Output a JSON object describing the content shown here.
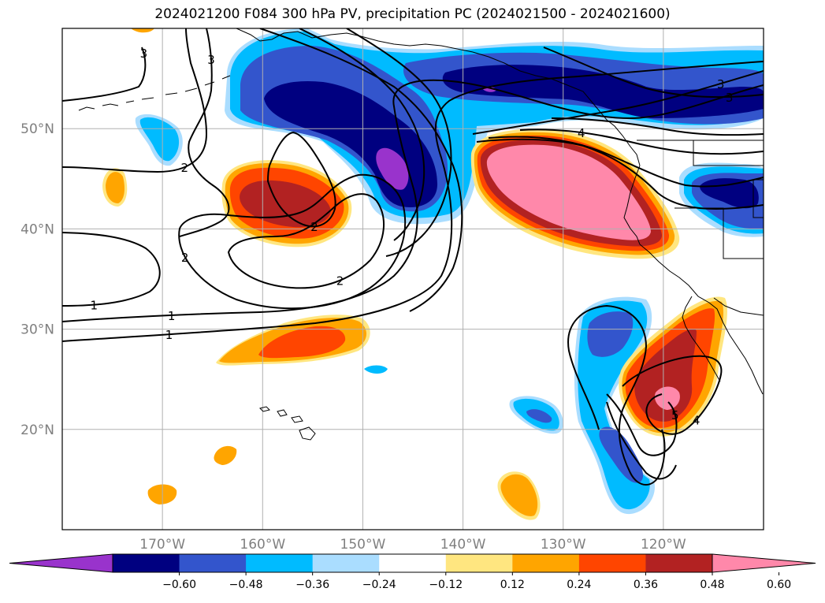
{
  "title": "2024021200 F084 300 hPa PV, precipitation PC (2024021500 - 2024021600)",
  "chart_data": {
    "type": "map-contour",
    "projection": "PlateCarree",
    "lon_range": [
      -180,
      -110
    ],
    "lat_range": [
      10,
      60
    ],
    "grid": true,
    "lat_ticks": [
      "20°N",
      "30°N",
      "40°N",
      "50°N"
    ],
    "lon_ticks": [
      "170°W",
      "160°W",
      "150°W",
      "140°W",
      "130°W",
      "120°W"
    ],
    "filled_variable": "precipitation PC",
    "contour_variable": "300 hPa PV",
    "contour_labels": [
      "1",
      "1",
      "1",
      "2",
      "2",
      "2",
      "2",
      "3",
      "3",
      "3",
      "3",
      "4",
      "4",
      "5"
    ],
    "colorbar": {
      "extend": "both",
      "levels": [
        -0.72,
        -0.6,
        -0.48,
        -0.36,
        -0.24,
        -0.12,
        0.12,
        0.24,
        0.36,
        0.48,
        0.6,
        0.72
      ],
      "tick_labels": [
        "−0.60",
        "−0.48",
        "−0.36",
        "−0.24",
        "−0.12",
        "0.12",
        "0.24",
        "0.36",
        "0.48",
        "0.60"
      ],
      "colors": [
        "#9933cc",
        "#000080",
        "#3355cc",
        "#00bbff",
        "#aaddff",
        "#ffffff",
        "#ffe680",
        "#ffa500",
        "#ff4500",
        "#b22222",
        "#ff88aa"
      ]
    },
    "features": [
      {
        "name": "Gulf of Alaska negative anomaly",
        "center": [
          -148,
          53
        ],
        "value": -0.6
      },
      {
        "name": "NE Pacific negative band",
        "center": [
          -128,
          56
        ],
        "value": -0.48
      },
      {
        "name": "Pacific Northwest interior negative",
        "center": [
          -114,
          44
        ],
        "value": -0.48
      },
      {
        "name": "Central Pacific positive",
        "center": [
          -157,
          42
        ],
        "value": 0.48
      },
      {
        "name": "California offshore positive",
        "center": [
          -128,
          43
        ],
        "value": 0.6
      },
      {
        "name": "Baja positive",
        "center": [
          -121,
          24
        ],
        "value": 0.6
      },
      {
        "name": "Subtropical positive band",
        "center": [
          -155,
          28.5
        ],
        "value": 0.36
      },
      {
        "name": "Eastern tropical negative",
        "center": [
          -124,
          22
        ],
        "value": -0.36
      }
    ]
  },
  "colors": {
    "grid": "#b0b0b0",
    "contour": "#000000",
    "coast": "#000000",
    "tick_text": "#7f7f7f"
  }
}
